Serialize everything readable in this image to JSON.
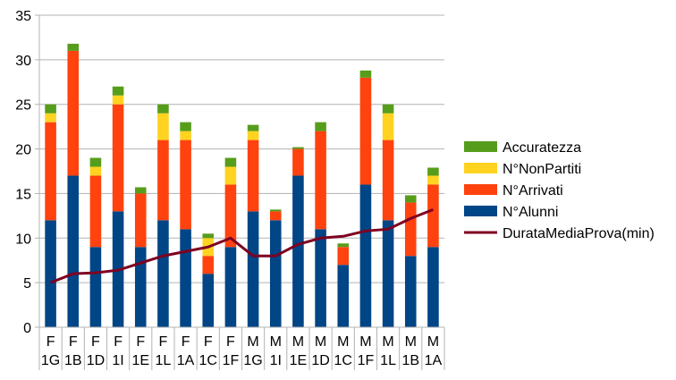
{
  "chart_data": {
    "type": "bar",
    "stacked": true,
    "categories": [
      [
        "F",
        "1G"
      ],
      [
        "F",
        "1B"
      ],
      [
        "F",
        "1D"
      ],
      [
        "F",
        "1I"
      ],
      [
        "F",
        "1E"
      ],
      [
        "F",
        "1L"
      ],
      [
        "F",
        "1A"
      ],
      [
        "F",
        "1C"
      ],
      [
        "F",
        "1F"
      ],
      [
        "M",
        "1G"
      ],
      [
        "M",
        "1I"
      ],
      [
        "M",
        "1E"
      ],
      [
        "M",
        "1D"
      ],
      [
        "M",
        "1C"
      ],
      [
        "M",
        "1F"
      ],
      [
        "M",
        "1L"
      ],
      [
        "M",
        "1B"
      ],
      [
        "M",
        "1A"
      ]
    ],
    "ylim": [
      0,
      35
    ],
    "yticks": [
      0,
      5,
      10,
      15,
      20,
      25,
      30,
      35
    ],
    "grid": true,
    "legend_position": "right",
    "series": [
      {
        "name": "N°Alunni",
        "type": "bar",
        "color": "#004586",
        "values": [
          12,
          17,
          9,
          13,
          9,
          12,
          11,
          6,
          9,
          13,
          12,
          17,
          11,
          7,
          16,
          12,
          8,
          9
        ]
      },
      {
        "name": "N°Arrivati",
        "type": "bar",
        "color": "#ff420e",
        "values": [
          11,
          14,
          8,
          12,
          6,
          9,
          10,
          2,
          7,
          8,
          1,
          3,
          11,
          2,
          12,
          9,
          6,
          7
        ]
      },
      {
        "name": "N°NonPartiti",
        "type": "bar",
        "color": "#ffd320",
        "values": [
          1,
          0,
          1,
          1,
          0,
          3,
          1,
          2,
          2,
          1,
          0,
          0,
          0,
          0,
          0,
          3,
          0,
          1
        ]
      },
      {
        "name": "Accuratezza",
        "type": "bar",
        "color": "#579d1c",
        "values": [
          1,
          0.8,
          1,
          1,
          0.7,
          1,
          1,
          0.5,
          1,
          0.7,
          0.2,
          0.2,
          1,
          0.4,
          0.8,
          1,
          0.8,
          0.9
        ]
      },
      {
        "name": "DurataMediaProva(min)",
        "type": "line",
        "color": "#7e0021",
        "values": [
          5.0,
          6.0,
          6.1,
          6.4,
          7.2,
          8.0,
          8.5,
          9.0,
          10.0,
          8.0,
          8.0,
          9.3,
          10.0,
          10.2,
          10.8,
          11.0,
          12.2,
          13.2
        ]
      }
    ],
    "legend_order": [
      "Accuratezza",
      "N°NonPartiti",
      "N°Arrivati",
      "N°Alunni",
      "DurataMediaProva(min)"
    ]
  }
}
